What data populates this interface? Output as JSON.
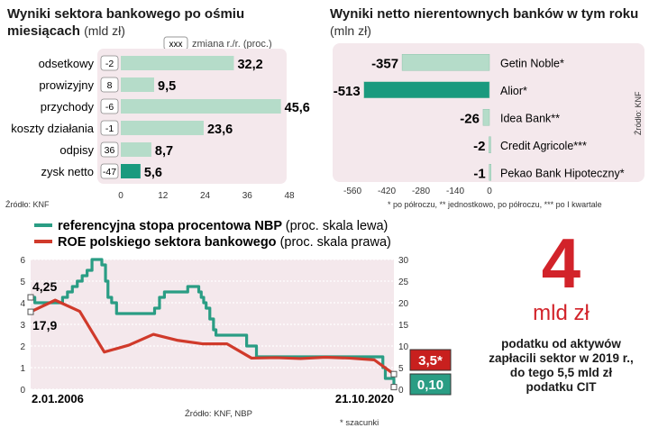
{
  "colors": {
    "panel": "#f4e8ec",
    "bar_light": "#b5dcc9",
    "bar_teal": "#1a9a7e",
    "line_teal": "#2a9d84",
    "line_red": "#d03a2b",
    "badge_red": "#c8201e",
    "big_red": "#d2232a"
  },
  "chart_data": [
    {
      "id": "wyniki-sektora",
      "type": "bar",
      "title_bold": "Wyniki sektora bankowego po ośmiu miesiącach",
      "title_bold_line1": "Wyniki sektora bankowego po ośmiu",
      "title_bold_line2": "miesiącach",
      "unit": "(mld zł)",
      "legend_box": "xxx",
      "legend_text": "zmiana r./r. (proc.)",
      "categories": [
        "odsetkowy",
        "prowizyjny",
        "przychody",
        "koszty działania",
        "odpisy",
        "zysk netto"
      ],
      "values": [
        32.2,
        9.5,
        45.6,
        23.6,
        8.7,
        5.6
      ],
      "value_labels": [
        "32,2",
        "9,5",
        "45,6",
        "23,6",
        "8,7",
        "5,6"
      ],
      "changes": [
        "-2",
        "8",
        "-6",
        "-1",
        "36",
        "-47"
      ],
      "highlight_index": 5,
      "xlim": [
        0,
        48
      ],
      "xticks": [
        0,
        12,
        24,
        36,
        48
      ],
      "xtick_labels": [
        "0",
        "12",
        "24",
        "36",
        "48"
      ],
      "source": "Źródło: KNF"
    },
    {
      "id": "wyniki-netto",
      "type": "bar",
      "title_bold": "Wyniki netto nierentownych banków w tym roku",
      "unit": "(mln zł)",
      "categories": [
        "Getin Noble*",
        "Alior*",
        "Idea Bank**",
        "Credit Agricole***",
        "Pekao Bank Hipoteczny*"
      ],
      "values": [
        -357,
        -513,
        -26,
        -2,
        -1
      ],
      "value_labels": [
        "-357",
        "-513",
        "-26",
        "-2",
        "-1"
      ],
      "highlight_index": 1,
      "xlim": [
        -560,
        0
      ],
      "xticks": [
        -560,
        -420,
        -280,
        -140,
        0
      ],
      "xtick_labels": [
        "-560",
        "-420",
        "-280",
        "-140",
        "0"
      ],
      "footnote": "* po półroczu, ** jednostkowo, po półroczu, *** po I kwartale",
      "source": "Źródło: KNF"
    },
    {
      "id": "stopa-roe",
      "type": "line",
      "legend": [
        {
          "bold": "referencyjna stopa procentowa NBP",
          "normal": "(proc. skala lewa)"
        },
        {
          "bold": "ROE polskiego sektora bankowego",
          "normal": "(proc. skala prawa)"
        }
      ],
      "x_start": 2006.0,
      "x_end": 2020.8,
      "xtick_labels": [
        "2.01.2006",
        "21.10.2020"
      ],
      "ylim_left": [
        0,
        6
      ],
      "yticks_left": [
        0,
        1,
        2,
        3,
        4,
        5,
        6
      ],
      "ylim_right": [
        0,
        30
      ],
      "yticks_right": [
        0,
        5,
        10,
        15,
        20,
        25,
        30
      ],
      "series": [
        {
          "name": "referencyjna stopa procentowa NBP",
          "axis": "left",
          "step": true,
          "x": [
            2006.0,
            2006.17,
            2006.25,
            2007.3,
            2007.5,
            2007.7,
            2007.9,
            2008.1,
            2008.3,
            2008.5,
            2008.9,
            2009.05,
            2009.15,
            2009.3,
            2009.5,
            2010.9,
            2011.05,
            2011.25,
            2011.45,
            2012.4,
            2012.85,
            2012.95,
            2013.05,
            2013.15,
            2013.3,
            2013.45,
            2013.55,
            2014.8,
            2015.2,
            2020.2,
            2020.35,
            2020.45,
            2020.8
          ],
          "y": [
            4.25,
            4.0,
            4.0,
            4.25,
            4.5,
            4.75,
            5.0,
            5.25,
            5.5,
            6.0,
            5.75,
            5.0,
            4.25,
            4.0,
            3.5,
            3.5,
            3.75,
            4.25,
            4.5,
            4.75,
            4.5,
            4.25,
            4.0,
            3.75,
            3.25,
            2.75,
            2.5,
            2.0,
            1.5,
            1.5,
            1.0,
            0.5,
            0.1
          ],
          "start_label": "4,25",
          "end_label": "0,10"
        },
        {
          "name": "ROE polskiego sektora bankowego",
          "axis": "right",
          "step": false,
          "x": [
            2006.0,
            2007.0,
            2008.0,
            2009.0,
            2010.0,
            2011.0,
            2012.0,
            2013.0,
            2014.0,
            2015.0,
            2016.0,
            2017.0,
            2018.0,
            2019.0,
            2020.0,
            2020.8
          ],
          "y": [
            17.9,
            20.6,
            18.0,
            8.6,
            10.2,
            12.7,
            11.3,
            10.5,
            10.5,
            7.2,
            7.3,
            7.1,
            7.4,
            7.2,
            6.8,
            3.5
          ],
          "start_label": "17,9",
          "end_label": "3,5*"
        }
      ],
      "source": "Źródło: KNF, NBP",
      "footnote": "* szacunki"
    }
  ],
  "callout": {
    "number": "4",
    "unit": "mld zł",
    "line1": "podatku od aktywów",
    "line2": "zapłacili sektor w 2019 r.,",
    "line3": "do tego 5,5 mld zł",
    "line4": "podatku CIT"
  },
  "side_source": "Źródło: KNF"
}
